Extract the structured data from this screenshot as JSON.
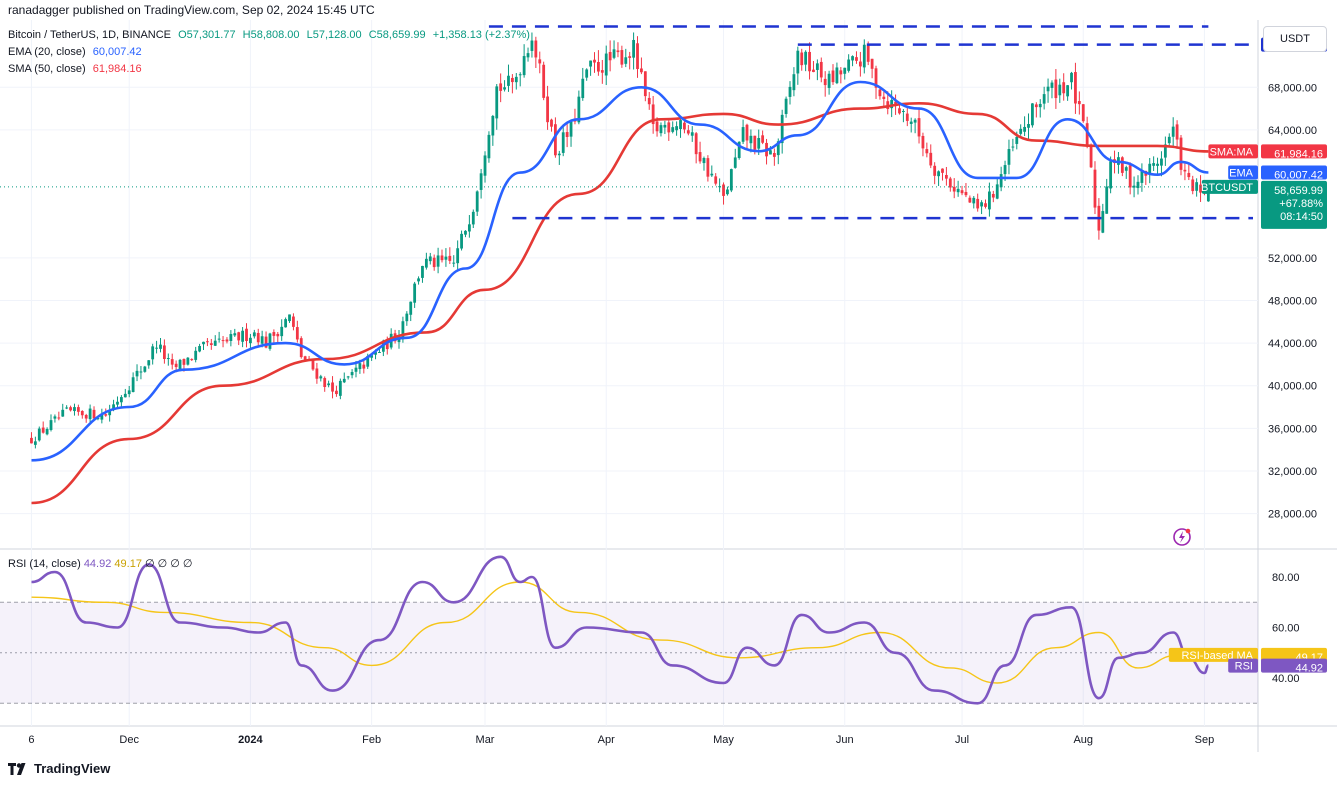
{
  "header": {
    "published": "ranadagger published on TradingView.com, Sep 02, 2024 15:45 UTC",
    "symbol": "Bitcoin / TetherUS, 1D, BINANCE",
    "open": "O57,301.77",
    "high": "H58,808.00",
    "low": "L57,128.00",
    "close": "C58,659.99",
    "change": "+1,358.13 (+2.37%)",
    "ema_label": "EMA (20, close)",
    "ema_value": "60,007.42",
    "sma_label": "SMA (50, close)",
    "sma_value": "61,984.16"
  },
  "currency_button": "USDT",
  "footer": {
    "brand": "TradingView",
    "logo_icon": "tradingview-logo-icon"
  },
  "price_tags": {
    "level_72000": "72,000.00",
    "level_55724": "55,724.00",
    "sma_name": "SMA:MA",
    "sma_value": "61,984.16",
    "ema_name": "EMA",
    "ema_value": "60,007.42",
    "last_name": "BTCUSDT",
    "last_value": "58,659.99",
    "last_change": "+67.88%",
    "countdown": "08:14:50"
  },
  "rsi_header": {
    "label": "RSI (14, close)",
    "rsi_value": "44.92",
    "ma_value": "49.17",
    "extras": "∅ ∅ ∅ ∅"
  },
  "rsi_tags": {
    "ma_name": "RSI-based MA",
    "ma_value": "49.17",
    "rsi_name": "RSI",
    "rsi_value": "44.92"
  },
  "colors": {
    "up": "#089981",
    "down": "#f23645",
    "ema": "#2962ff",
    "sma": "#e53935",
    "level": "#1f34d1",
    "rsi": "#7e57c2",
    "rsi_ma": "#f5c518"
  },
  "chart_data": [
    {
      "type": "candlestick",
      "title": "Bitcoin / TetherUS, 1D, BINANCE",
      "x_ticks": [
        "6",
        "Dec",
        "2024",
        "Feb",
        "Mar",
        "Apr",
        "May",
        "Jun",
        "Jul",
        "Aug",
        "Sep"
      ],
      "y_ticks": [
        "28,000.00",
        "32,000.00",
        "36,000.00",
        "40,000.00",
        "44,000.00",
        "48,000.00",
        "52,000.00",
        "64,000.00",
        "68,000.00"
      ],
      "ylim": [
        25500,
        76000
      ],
      "price_path": [
        [
          "2023-11-06",
          35000
        ],
        [
          "2023-11-15",
          37500
        ],
        [
          "2023-11-25",
          37300
        ],
        [
          "2023-12-05",
          42000
        ],
        [
          "2023-12-08",
          44000
        ],
        [
          "2023-12-12",
          41500
        ],
        [
          "2023-12-20",
          43500
        ],
        [
          "2024-01-02",
          45000
        ],
        [
          "2024-01-05",
          44000
        ],
        [
          "2024-01-11",
          46500
        ],
        [
          "2024-01-14",
          42800
        ],
        [
          "2024-01-22",
          39500
        ],
        [
          "2024-01-24",
          40000
        ],
        [
          "2024-02-02",
          43000
        ],
        [
          "2024-02-08",
          45000
        ],
        [
          "2024-02-14",
          51500
        ],
        [
          "2024-02-22",
          51500
        ],
        [
          "2024-02-27",
          57000
        ],
        [
          "2024-03-04",
          68000
        ],
        [
          "2024-03-08",
          68200
        ],
        [
          "2024-03-13",
          73000
        ],
        [
          "2024-03-19",
          62000
        ],
        [
          "2024-03-23",
          64000
        ],
        [
          "2024-03-27",
          69500
        ],
        [
          "2024-04-08",
          71500
        ],
        [
          "2024-04-13",
          64000
        ],
        [
          "2024-04-20",
          65000
        ],
        [
          "2024-05-01",
          57500
        ],
        [
          "2024-05-06",
          63500
        ],
        [
          "2024-05-14",
          61500
        ],
        [
          "2024-05-20",
          71000
        ],
        [
          "2024-05-28",
          68500
        ],
        [
          "2024-06-06",
          71000
        ],
        [
          "2024-06-11",
          67000
        ],
        [
          "2024-06-18",
          65000
        ],
        [
          "2024-06-24",
          60500
        ],
        [
          "2024-07-05",
          56500
        ],
        [
          "2024-07-08",
          57500
        ],
        [
          "2024-07-15",
          63000
        ],
        [
          "2024-07-22",
          67500
        ],
        [
          "2024-07-29",
          68500
        ],
        [
          "2024-08-02",
          62500
        ],
        [
          "2024-08-05",
          54500
        ],
        [
          "2024-08-08",
          61500
        ],
        [
          "2024-08-14",
          59000
        ],
        [
          "2024-08-20",
          61000
        ],
        [
          "2024-08-24",
          64000
        ],
        [
          "2024-08-27",
          59500
        ],
        [
          "2024-09-01",
          57500
        ],
        [
          "2024-09-02",
          58660
        ]
      ],
      "ema20_path": [
        [
          "2023-11-06",
          33000
        ],
        [
          "2023-12-01",
          38000
        ],
        [
          "2023-12-15",
          41500
        ],
        [
          "2024-01-10",
          44000
        ],
        [
          "2024-01-25",
          42000
        ],
        [
          "2024-02-10",
          44500
        ],
        [
          "2024-02-25",
          51000
        ],
        [
          "2024-03-10",
          60000
        ],
        [
          "2024-03-25",
          65000
        ],
        [
          "2024-04-10",
          68000
        ],
        [
          "2024-04-25",
          64500
        ],
        [
          "2024-05-10",
          62000
        ],
        [
          "2024-05-20",
          63500
        ],
        [
          "2024-06-05",
          68500
        ],
        [
          "2024-06-20",
          66000
        ],
        [
          "2024-07-05",
          59500
        ],
        [
          "2024-07-15",
          59500
        ],
        [
          "2024-07-28",
          65000
        ],
        [
          "2024-08-10",
          61000
        ],
        [
          "2024-08-20",
          59800
        ],
        [
          "2024-08-26",
          61000
        ],
        [
          "2024-09-02",
          60007.42
        ]
      ],
      "sma50_path": [
        [
          "2023-11-06",
          29000
        ],
        [
          "2023-12-01",
          35000
        ],
        [
          "2023-12-25",
          40000
        ],
        [
          "2024-01-20",
          42500
        ],
        [
          "2024-02-15",
          45000
        ],
        [
          "2024-03-01",
          49000
        ],
        [
          "2024-03-25",
          58000
        ],
        [
          "2024-04-15",
          65000
        ],
        [
          "2024-05-01",
          65500
        ],
        [
          "2024-05-15",
          64500
        ],
        [
          "2024-06-05",
          66000
        ],
        [
          "2024-06-20",
          66500
        ],
        [
          "2024-07-05",
          65500
        ],
        [
          "2024-07-20",
          63000
        ],
        [
          "2024-08-05",
          62500
        ],
        [
          "2024-08-20",
          62500
        ],
        [
          "2024-09-02",
          61984.16
        ]
      ],
      "resistance_level": 72000,
      "support_level": 55724,
      "ema20_last": 60007.42,
      "sma50_last": 61984.16,
      "last_close": 58659.99
    },
    {
      "type": "line",
      "title": "RSI (14, close)",
      "y_ticks": [
        "40.00",
        "60.00",
        "80.00"
      ],
      "ylim": [
        20,
        90
      ],
      "band": [
        30,
        70
      ],
      "rsi_path": [
        [
          "2023-11-06",
          78
        ],
        [
          "2023-11-12",
          82
        ],
        [
          "2023-11-20",
          62
        ],
        [
          "2023-11-28",
          60
        ],
        [
          "2023-12-06",
          85
        ],
        [
          "2023-12-14",
          62
        ],
        [
          "2023-12-25",
          60
        ],
        [
          "2024-01-03",
          58
        ],
        [
          "2024-01-10",
          62
        ],
        [
          "2024-01-14",
          45
        ],
        [
          "2024-01-22",
          35
        ],
        [
          "2024-02-03",
          55
        ],
        [
          "2024-02-14",
          78
        ],
        [
          "2024-02-22",
          70
        ],
        [
          "2024-03-05",
          88
        ],
        [
          "2024-03-10",
          78
        ],
        [
          "2024-03-13",
          80
        ],
        [
          "2024-03-19",
          52
        ],
        [
          "2024-03-27",
          60
        ],
        [
          "2024-04-10",
          58
        ],
        [
          "2024-04-18",
          45
        ],
        [
          "2024-05-01",
          38
        ],
        [
          "2024-05-07",
          52
        ],
        [
          "2024-05-14",
          45
        ],
        [
          "2024-05-21",
          65
        ],
        [
          "2024-05-28",
          58
        ],
        [
          "2024-06-06",
          62
        ],
        [
          "2024-06-14",
          50
        ],
        [
          "2024-06-24",
          35
        ],
        [
          "2024-07-05",
          30
        ],
        [
          "2024-07-12",
          45
        ],
        [
          "2024-07-20",
          65
        ],
        [
          "2024-07-29",
          68
        ],
        [
          "2024-08-05",
          32
        ],
        [
          "2024-08-10",
          48
        ],
        [
          "2024-08-16",
          50
        ],
        [
          "2024-08-24",
          58
        ],
        [
          "2024-08-28",
          48
        ],
        [
          "2024-09-01",
          42
        ],
        [
          "2024-09-02",
          44.92
        ]
      ],
      "rsi_ma_path": [
        [
          "2023-11-06",
          72
        ],
        [
          "2023-11-25",
          70
        ],
        [
          "2023-12-10",
          66
        ],
        [
          "2024-01-01",
          62
        ],
        [
          "2024-01-20",
          52
        ],
        [
          "2024-02-01",
          45
        ],
        [
          "2024-02-20",
          62
        ],
        [
          "2024-03-10",
          78
        ],
        [
          "2024-03-25",
          66
        ],
        [
          "2024-04-15",
          55
        ],
        [
          "2024-05-05",
          48
        ],
        [
          "2024-05-25",
          52
        ],
        [
          "2024-06-10",
          58
        ],
        [
          "2024-06-28",
          44
        ],
        [
          "2024-07-10",
          38
        ],
        [
          "2024-07-25",
          52
        ],
        [
          "2024-08-05",
          58
        ],
        [
          "2024-08-15",
          44
        ],
        [
          "2024-08-25",
          49
        ],
        [
          "2024-09-02",
          49.17
        ]
      ],
      "rsi_last": 44.92,
      "rsi_ma_last": 49.17
    }
  ]
}
